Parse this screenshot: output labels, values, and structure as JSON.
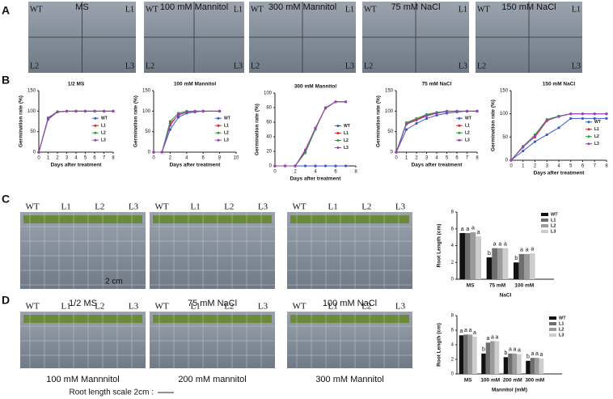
{
  "panel_labels": [
    "A",
    "B",
    "C",
    "D"
  ],
  "panel_a_photos": [
    {
      "title": "MS",
      "corners": [
        "WT",
        "L1",
        "L2",
        "L3"
      ]
    },
    {
      "title": "100 mM Mannitol",
      "corners": [
        "WT",
        "L1",
        "L2",
        "L3"
      ]
    },
    {
      "title": "300 mM Mannitol",
      "corners": [
        "WT",
        "L1",
        "L2",
        "L3"
      ]
    },
    {
      "title": "75 mM NaCl",
      "corners": [
        "WT",
        "L1",
        "L2",
        "L3"
      ]
    },
    {
      "title": "150 mM NaCl",
      "corners": [
        "WT",
        "L1",
        "L2",
        "L3"
      ]
    }
  ],
  "chart_data": [
    {
      "type": "line",
      "title": "1/2 MS",
      "xlabel": "Days after treatment",
      "ylabel": "Germination rate (%)",
      "x": [
        0,
        1,
        2,
        3,
        4,
        5,
        6,
        7,
        8
      ],
      "xlim": [
        0,
        8
      ],
      "xticks": [
        0,
        1,
        2,
        3,
        4,
        5,
        6,
        7,
        8
      ],
      "ylim": [
        0,
        150
      ],
      "yticks": [
        0,
        50,
        100,
        150
      ],
      "series": [
        {
          "name": "WT",
          "color": "#3a5bc7",
          "values": [
            0,
            80,
            98,
            100,
            100,
            100,
            100,
            100,
            100
          ]
        },
        {
          "name": "L1",
          "color": "#e02424",
          "values": [
            0,
            82,
            98,
            100,
            100,
            100,
            100,
            100,
            100
          ]
        },
        {
          "name": "L2",
          "color": "#2e9e3e",
          "values": [
            0,
            84,
            99,
            100,
            100,
            100,
            100,
            100,
            100
          ]
        },
        {
          "name": "L3",
          "color": "#9a3fbf",
          "values": [
            0,
            83,
            98,
            100,
            100,
            100,
            100,
            100,
            100
          ]
        }
      ]
    },
    {
      "type": "line",
      "title": "100 mM Mannitol",
      "xlabel": "Days after treatment",
      "ylabel": "Germination rate (%)",
      "x": [
        0,
        1,
        2,
        3,
        4,
        5,
        6,
        8
      ],
      "xlim": [
        0,
        10
      ],
      "xticks": [
        0,
        2,
        4,
        6,
        8,
        10
      ],
      "ylim": [
        0,
        150
      ],
      "yticks": [
        0,
        50,
        100,
        150
      ],
      "series": [
        {
          "name": "WT",
          "color": "#3a5bc7",
          "values": [
            0,
            0,
            55,
            85,
            95,
            98,
            100,
            100
          ]
        },
        {
          "name": "L1",
          "color": "#e02424",
          "values": [
            0,
            0,
            70,
            90,
            98,
            100,
            100,
            100
          ]
        },
        {
          "name": "L2",
          "color": "#2e9e3e",
          "values": [
            0,
            0,
            75,
            95,
            100,
            100,
            100,
            100
          ]
        },
        {
          "name": "L3",
          "color": "#9a3fbf",
          "values": [
            0,
            0,
            65,
            92,
            98,
            100,
            100,
            100
          ]
        }
      ]
    },
    {
      "type": "line",
      "title": "300 mM Mannitol",
      "xlabel": "Days after treatment",
      "ylabel": "Germination rate (%)",
      "x": [
        0,
        1,
        2,
        3,
        4,
        5,
        6,
        7
      ],
      "xlim": [
        0,
        8
      ],
      "xticks": [
        0,
        2,
        4,
        6,
        8
      ],
      "ylim": [
        0,
        100
      ],
      "yticks": [
        0,
        20,
        40,
        60,
        80,
        100
      ],
      "series": [
        {
          "name": "WT",
          "color": "#3a5bc7",
          "values": [
            0,
            0,
            0,
            0,
            0,
            0,
            0,
            0
          ]
        },
        {
          "name": "L1",
          "color": "#e02424",
          "values": [
            0,
            0,
            0,
            20,
            52,
            80,
            88,
            88
          ]
        },
        {
          "name": "L2",
          "color": "#2e9e3e",
          "values": [
            0,
            0,
            0,
            18,
            50,
            80,
            88,
            88
          ]
        },
        {
          "name": "L3",
          "color": "#9a3fbf",
          "values": [
            0,
            0,
            0,
            22,
            52,
            79,
            88,
            88
          ]
        }
      ]
    },
    {
      "type": "line",
      "title": "75 mM NaCl",
      "xlabel": "Days after treatment",
      "ylabel": "Germination rate (%)",
      "x": [
        0,
        1,
        2,
        3,
        4,
        5,
        6,
        7,
        8
      ],
      "xlim": [
        0,
        8
      ],
      "xticks": [
        0,
        1,
        2,
        3,
        4,
        5,
        6,
        7,
        8
      ],
      "ylim": [
        0,
        150
      ],
      "yticks": [
        0,
        50,
        100,
        150
      ],
      "series": [
        {
          "name": "WT",
          "color": "#3a5bc7",
          "values": [
            0,
            55,
            70,
            82,
            90,
            95,
            98,
            100,
            100
          ]
        },
        {
          "name": "L1",
          "color": "#e02424",
          "values": [
            0,
            70,
            80,
            90,
            96,
            100,
            100,
            100,
            100
          ]
        },
        {
          "name": "L2",
          "color": "#2e9e3e",
          "values": [
            0,
            72,
            82,
            92,
            97,
            100,
            100,
            100,
            100
          ]
        },
        {
          "name": "L3",
          "color": "#9a3fbf",
          "values": [
            0,
            68,
            78,
            88,
            95,
            99,
            100,
            100,
            100
          ]
        }
      ]
    },
    {
      "type": "line",
      "title": "150 mM NaCl",
      "xlabel": "Days after treatment",
      "ylabel": "Germination rate (%)",
      "x": [
        0,
        1,
        2,
        3,
        4,
        5,
        6,
        7,
        8
      ],
      "xlim": [
        0,
        8
      ],
      "xticks": [
        0,
        1,
        2,
        3,
        4,
        5,
        6,
        7,
        8
      ],
      "ylim": [
        0,
        150
      ],
      "yticks": [
        0,
        50,
        100,
        150
      ],
      "series": [
        {
          "name": "WT",
          "color": "#3a5bc7",
          "values": [
            0,
            20,
            40,
            55,
            70,
            90,
            90,
            90,
            90
          ]
        },
        {
          "name": "L1",
          "color": "#e02424",
          "values": [
            0,
            30,
            50,
            85,
            95,
            100,
            100,
            100,
            100
          ]
        },
        {
          "name": "L2",
          "color": "#2e9e3e",
          "values": [
            0,
            30,
            55,
            88,
            95,
            100,
            100,
            100,
            100
          ]
        },
        {
          "name": "L3",
          "color": "#9a3fbf",
          "values": [
            0,
            28,
            52,
            86,
            94,
            100,
            100,
            100,
            100
          ]
        }
      ]
    },
    {
      "type": "bar",
      "xlabel": "NaCl",
      "ylabel": "Root Length (cm)",
      "categories": [
        "MS",
        "75 mM",
        "100 mM"
      ],
      "ylim": [
        0,
        8
      ],
      "yticks": [
        0,
        2,
        4,
        6,
        8
      ],
      "series": [
        {
          "name": "WT",
          "color": "#111111",
          "values": [
            5.5,
            2.6,
            2.0
          ],
          "letters": [
            "a",
            "b",
            "b"
          ]
        },
        {
          "name": "L1",
          "color": "#6e6e6e",
          "values": [
            5.5,
            3.7,
            3.0
          ],
          "letters": [
            "a",
            "a",
            "a"
          ]
        },
        {
          "name": "L2",
          "color": "#9b9b9b",
          "values": [
            5.6,
            3.7,
            3.0
          ],
          "letters": [
            "a",
            "a",
            "a"
          ]
        },
        {
          "name": "L3",
          "color": "#cdcdcd",
          "values": [
            5.1,
            3.7,
            3.1
          ],
          "letters": [
            "a",
            "a",
            "a"
          ]
        }
      ]
    },
    {
      "type": "bar",
      "xlabel": "Mannitol (mM)",
      "ylabel": "Root Length (cm)",
      "categories": [
        "MS",
        "100 mM",
        "200 mM",
        "300 mM"
      ],
      "ylim": [
        0,
        8
      ],
      "yticks": [
        0,
        2,
        4,
        6,
        8
      ],
      "series": [
        {
          "name": "WT",
          "color": "#111111",
          "values": [
            5.3,
            2.8,
            2.3,
            1.8
          ],
          "letters": [
            "a",
            "b",
            "b",
            "b"
          ]
        },
        {
          "name": "L1",
          "color": "#6e6e6e",
          "values": [
            5.4,
            4.3,
            2.8,
            2.2
          ],
          "letters": [
            "a",
            "a",
            "a",
            "a"
          ]
        },
        {
          "name": "L2",
          "color": "#9b9b9b",
          "values": [
            5.4,
            4.5,
            2.8,
            2.2
          ],
          "letters": [
            "a",
            "a",
            "a",
            "a"
          ]
        },
        {
          "name": "L3",
          "color": "#cdcdcd",
          "values": [
            5.1,
            4.5,
            2.7,
            2.1
          ],
          "letters": [
            "a",
            "a",
            "a",
            "a"
          ]
        }
      ]
    }
  ],
  "panel_c_photos": {
    "lines": [
      "WT",
      "L1",
      "L2",
      "L3"
    ],
    "captions": [
      "1/2 MS",
      "75 mM NaCl",
      "100 mM NaCl"
    ],
    "scale": "2 cm"
  },
  "panel_d_photos": {
    "lines": [
      "WT",
      "L1",
      "L2",
      "L3"
    ],
    "captions": [
      "100 mM Mannnitol",
      "200 mM mannitol",
      "300 mM Mannitol"
    ]
  },
  "scale_note": "Root length scale 2cm :"
}
